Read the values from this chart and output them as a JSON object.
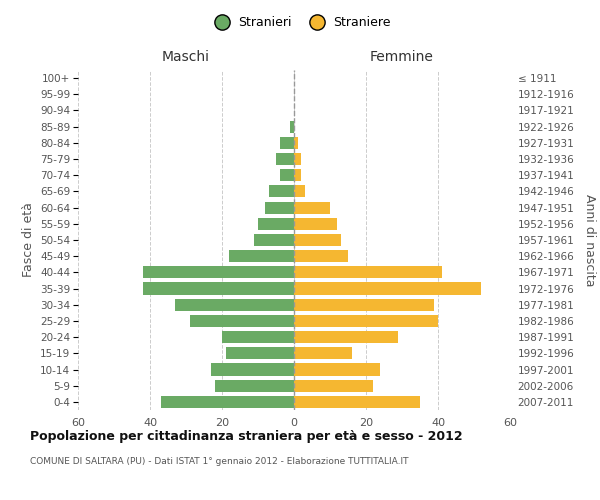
{
  "age_groups": [
    "100+",
    "95-99",
    "90-94",
    "85-89",
    "80-84",
    "75-79",
    "70-74",
    "65-69",
    "60-64",
    "55-59",
    "50-54",
    "45-49",
    "40-44",
    "35-39",
    "30-34",
    "25-29",
    "20-24",
    "15-19",
    "10-14",
    "5-9",
    "0-4"
  ],
  "birth_years": [
    "≤ 1911",
    "1912-1916",
    "1917-1921",
    "1922-1926",
    "1927-1931",
    "1932-1936",
    "1937-1941",
    "1942-1946",
    "1947-1951",
    "1952-1956",
    "1957-1961",
    "1962-1966",
    "1967-1971",
    "1972-1976",
    "1977-1981",
    "1982-1986",
    "1987-1991",
    "1992-1996",
    "1997-2001",
    "2002-2006",
    "2007-2011"
  ],
  "males": [
    0,
    0,
    0,
    1,
    4,
    5,
    4,
    7,
    8,
    10,
    11,
    18,
    42,
    42,
    33,
    29,
    20,
    19,
    23,
    22,
    37
  ],
  "females": [
    0,
    0,
    0,
    0,
    1,
    2,
    2,
    3,
    10,
    12,
    13,
    15,
    41,
    52,
    39,
    40,
    29,
    16,
    24,
    22,
    35
  ],
  "male_color": "#6aaa64",
  "female_color": "#f5b731",
  "male_label": "Stranieri",
  "female_label": "Straniere",
  "title_maschi": "Maschi",
  "title_femmine": "Femmine",
  "ylabel_left": "Fasce di età",
  "ylabel_right": "Anni di nascita",
  "xlim": 60,
  "title": "Popolazione per cittadinanza straniera per età e sesso - 2012",
  "subtitle": "COMUNE DI SALTARA (PU) - Dati ISTAT 1° gennaio 2012 - Elaborazione TUTTITALIA.IT",
  "bg_color": "#ffffff",
  "grid_color": "#cccccc",
  "center_line_color": "#999999"
}
